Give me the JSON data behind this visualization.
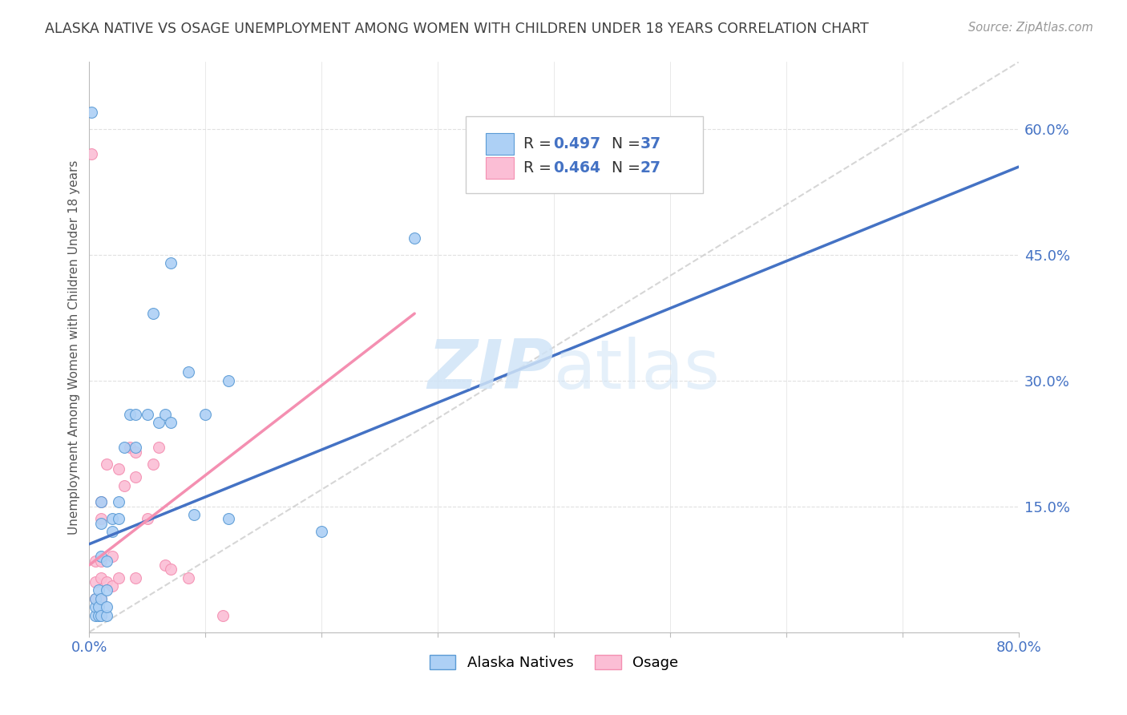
{
  "title": "ALASKA NATIVE VS OSAGE UNEMPLOYMENT AMONG WOMEN WITH CHILDREN UNDER 18 YEARS CORRELATION CHART",
  "source": "Source: ZipAtlas.com",
  "ylabel": "Unemployment Among Women with Children Under 18 years",
  "xmin": 0.0,
  "xmax": 0.8,
  "ymin": 0.0,
  "ymax": 0.68,
  "yticks": [
    0.0,
    0.15,
    0.3,
    0.45,
    0.6
  ],
  "ytick_labels": [
    "",
    "15.0%",
    "30.0%",
    "45.0%",
    "60.0%"
  ],
  "legend_r1": "0.497",
  "legend_n1": "37",
  "legend_r2": "0.464",
  "legend_n2": "27",
  "alaska_color": "#ADD0F5",
  "osage_color": "#FBBED5",
  "alaska_edge_color": "#5B9BD5",
  "osage_edge_color": "#F48FB1",
  "alaska_line_color": "#4472C4",
  "osage_line_color": "#F48FB1",
  "ref_line_color": "#CCCCCC",
  "watermark_color": "#D0E4F7",
  "background_color": "#FFFFFF",
  "grid_color": "#E0E0E0",
  "title_color": "#404040",
  "axis_label_color": "#555555",
  "tick_label_color": "#4472C4",
  "source_color": "#999999",
  "figwidth": 14.06,
  "figheight": 8.92,
  "marker_size": 100,
  "alaska_line_x": [
    0.0,
    0.8
  ],
  "alaska_line_y": [
    0.105,
    0.555
  ],
  "osage_line_x": [
    0.0,
    0.28
  ],
  "osage_line_y": [
    0.08,
    0.38
  ],
  "ref_line_x": [
    0.0,
    0.8
  ],
  "ref_line_y": [
    0.0,
    0.68
  ],
  "alaska_scatter_x": [
    0.005,
    0.005,
    0.005,
    0.008,
    0.008,
    0.008,
    0.01,
    0.01,
    0.01,
    0.01,
    0.01,
    0.015,
    0.015,
    0.015,
    0.015,
    0.02,
    0.02,
    0.025,
    0.025,
    0.03,
    0.035,
    0.04,
    0.04,
    0.05,
    0.055,
    0.06,
    0.065,
    0.07,
    0.07,
    0.085,
    0.09,
    0.1,
    0.12,
    0.12,
    0.2,
    0.28,
    0.002
  ],
  "alaska_scatter_y": [
    0.02,
    0.03,
    0.04,
    0.02,
    0.03,
    0.05,
    0.02,
    0.04,
    0.09,
    0.13,
    0.155,
    0.02,
    0.03,
    0.05,
    0.085,
    0.12,
    0.135,
    0.135,
    0.155,
    0.22,
    0.26,
    0.22,
    0.26,
    0.26,
    0.38,
    0.25,
    0.26,
    0.25,
    0.44,
    0.31,
    0.14,
    0.26,
    0.3,
    0.135,
    0.12,
    0.47,
    0.62
  ],
  "osage_scatter_x": [
    0.005,
    0.005,
    0.005,
    0.01,
    0.01,
    0.01,
    0.01,
    0.01,
    0.015,
    0.015,
    0.02,
    0.02,
    0.025,
    0.025,
    0.03,
    0.035,
    0.04,
    0.04,
    0.04,
    0.05,
    0.055,
    0.06,
    0.065,
    0.07,
    0.085,
    0.115,
    0.002
  ],
  "osage_scatter_y": [
    0.04,
    0.06,
    0.085,
    0.04,
    0.065,
    0.085,
    0.135,
    0.155,
    0.06,
    0.2,
    0.055,
    0.09,
    0.065,
    0.195,
    0.175,
    0.22,
    0.065,
    0.185,
    0.215,
    0.135,
    0.2,
    0.22,
    0.08,
    0.075,
    0.065,
    0.02,
    0.57
  ]
}
